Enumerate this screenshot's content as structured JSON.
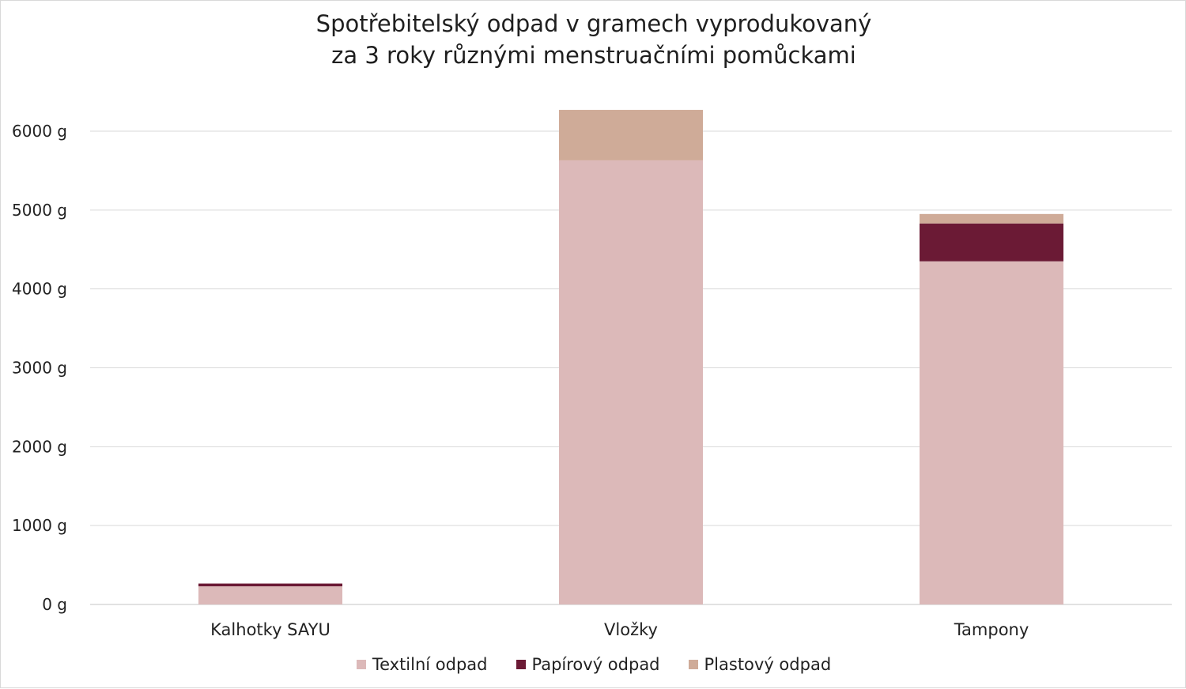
{
  "chart_data": {
    "type": "bar",
    "stacked": true,
    "title_lines": [
      "Spotřebitelský odpad v gramech vyprodukovaný",
      "za 3 roky různými menstruačními pomůckami"
    ],
    "categories": [
      "Kalhotky SAYU",
      "Vložky",
      "Tampony"
    ],
    "series": [
      {
        "name": "Textilní odpad",
        "color": "#dcb9b9",
        "values": [
          230,
          5630,
          4350
        ]
      },
      {
        "name": "Papírový odpad",
        "color": "#6b1a35",
        "values": [
          35,
          0,
          480
        ]
      },
      {
        "name": "Plastový odpad",
        "color": "#cfab98",
        "values": [
          0,
          640,
          120
        ]
      }
    ],
    "y_unit_suffix": " g",
    "yticks": [
      0,
      1000,
      2000,
      3000,
      4000,
      5000,
      6000
    ],
    "ylim": [
      0,
      6500
    ],
    "grid": true,
    "legend_position": "bottom",
    "gridline_color": "#d9d9d9"
  }
}
